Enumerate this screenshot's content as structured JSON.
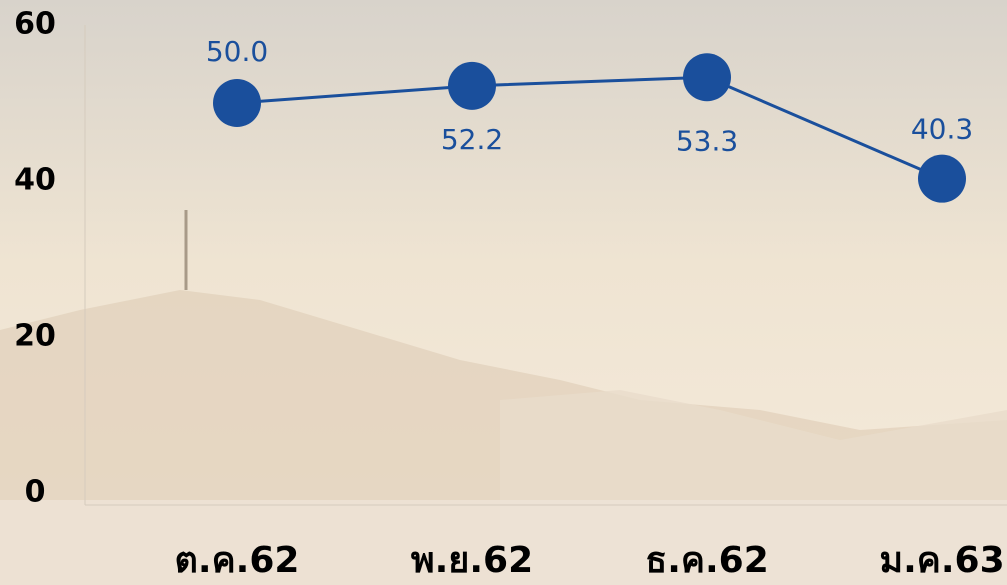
{
  "chart_data": {
    "type": "line",
    "categories": [
      "ต.ค.62",
      "พ.ย.62",
      "ธ.ค.62",
      "ม.ค.63"
    ],
    "series": [
      {
        "color": "#1a4f9c",
        "values": [
          50.0,
          52.2,
          53.3,
          40.3
        ],
        "value_labels": [
          "50.0",
          "52.2",
          "53.3",
          "40.3"
        ]
      }
    ],
    "ylim": [
      0,
      60
    ],
    "yticks": [
      0,
      20,
      40,
      60
    ]
  }
}
